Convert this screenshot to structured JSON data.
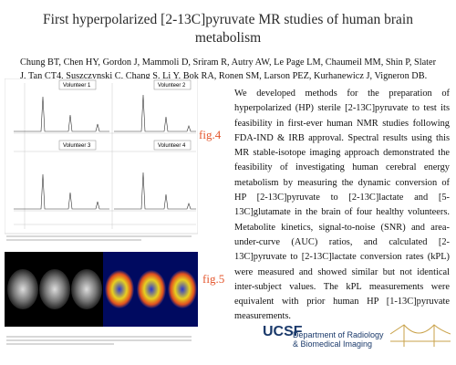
{
  "header": {
    "title": "First hyperpolarized [2-13C]pyruvate MR studies of human brain metabolism",
    "authors": "Chung BT, Chen HY, Gordon J, Mammoli D, Sriram R, Autry AW, Le Page LM, Chaumeil MM, Shin P, Slater J, Tan CT4, Suszczynski C, Chang S, Li Y, Bok RA, Ronen SM, Larson PEZ, Kurhanewicz J, Vigneron DB."
  },
  "figures": [
    {
      "label": "fig.4",
      "panels": [
        "Volunteer 1",
        "Volunteer 2",
        "Volunteer 3",
        "Volunteer 4"
      ]
    },
    {
      "label": "fig.5"
    }
  ],
  "body": "We developed methods for the preparation of hyperpolarized (HP) sterile [2-13C]pyruvate to test its feasibility in first-ever human NMR studies following FDA-IND & IRB approval. Spectral results using this MR stable-isotope imaging approach demonstrated the feasibility of investigating human cerebral energy metabolism by measuring the dynamic conversion of HP [2-13C]pyruvate to [2-13C]lactate and [5-13C]glutamate in the brain of four healthy volunteers. Metabolite kinetics, signal-to-noise (SNR) and area-under-curve (AUC) ratios, and calculated [2-13C]pyruvate to [2-13C]lactate conversion rates (kPL) were measured and showed similar but not identical inter-subject values. The kPL measurements were equivalent with prior human HP [1-13C]pyruvate measurements.",
  "logo": {
    "name": "UCSF",
    "department": "Department of Radiology & Biomedical Imaging"
  }
}
